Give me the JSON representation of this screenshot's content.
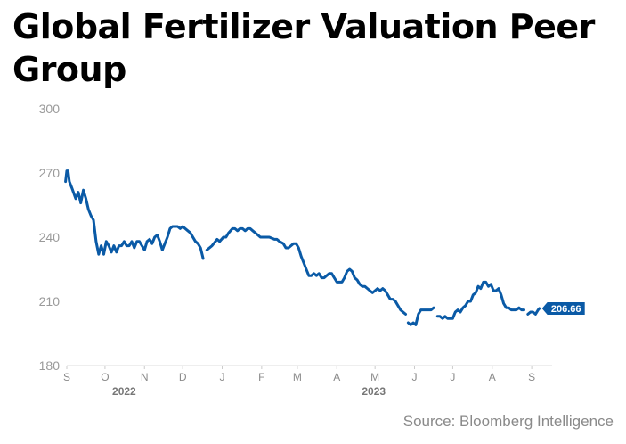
{
  "title": "Global Fertilizer Valuation Peer Group",
  "source": "Source: Bloomberg Intelligence",
  "chart_data": {
    "type": "line",
    "title": "Global Fertilizer Valuation Peer Group",
    "xlabel": "",
    "ylabel": "",
    "ylim": [
      180,
      300
    ],
    "yticks": [
      180,
      210,
      240,
      270,
      300
    ],
    "xlim": [
      "2022-09-01",
      "2023-09-17"
    ],
    "xticks": [
      {
        "label": "S",
        "date": "2022-09-01"
      },
      {
        "label": "O",
        "date": "2022-10-01"
      },
      {
        "label": "N",
        "date": "2022-11-01"
      },
      {
        "label": "D",
        "date": "2022-12-01"
      },
      {
        "label": "J",
        "date": "2023-01-01"
      },
      {
        "label": "F",
        "date": "2023-02-01"
      },
      {
        "label": "M",
        "date": "2023-03-01"
      },
      {
        "label": "A",
        "date": "2023-04-01"
      },
      {
        "label": "M",
        "date": "2023-05-01"
      },
      {
        "label": "J",
        "date": "2023-06-01"
      },
      {
        "label": "J",
        "date": "2023-07-01"
      },
      {
        "label": "A",
        "date": "2023-08-01"
      },
      {
        "label": "S",
        "date": "2023-09-01"
      }
    ],
    "year_labels": [
      {
        "label": "2022",
        "date": "2022-10-16"
      },
      {
        "label": "2023",
        "date": "2023-04-30"
      }
    ],
    "grid": false,
    "line_color": "#0a5aa6",
    "last_value_label": "206.66",
    "series": [
      {
        "points": [
          [
            "2022-08-31",
            266
          ],
          [
            "2022-09-01",
            271
          ],
          [
            "2022-09-02",
            271
          ],
          [
            "2022-09-03",
            266
          ],
          [
            "2022-09-05",
            263
          ],
          [
            "2022-09-08",
            258
          ],
          [
            "2022-09-10",
            261
          ],
          [
            "2022-09-12",
            256
          ],
          [
            "2022-09-14",
            262
          ],
          [
            "2022-09-16",
            258
          ],
          [
            "2022-09-18",
            253
          ],
          [
            "2022-09-20",
            250
          ],
          [
            "2022-09-22",
            248
          ],
          [
            "2022-09-24",
            238
          ],
          [
            "2022-09-26",
            232
          ],
          [
            "2022-09-28",
            236
          ],
          [
            "2022-09-30",
            232
          ],
          [
            "2022-10-02",
            238
          ],
          [
            "2022-10-04",
            236
          ],
          [
            "2022-10-06",
            233
          ],
          [
            "2022-10-08",
            236
          ],
          [
            "2022-10-10",
            233
          ],
          [
            "2022-10-12",
            236
          ],
          [
            "2022-10-14",
            236
          ],
          [
            "2022-10-16",
            238
          ],
          [
            "2022-10-18",
            236
          ],
          [
            "2022-10-20",
            236
          ],
          [
            "2022-10-22",
            238
          ],
          [
            "2022-10-24",
            235
          ],
          [
            "2022-10-26",
            238
          ],
          [
            "2022-10-28",
            238
          ],
          [
            "2022-10-30",
            236
          ],
          [
            "2022-11-01",
            234
          ],
          [
            "2022-11-03",
            238
          ],
          [
            "2022-11-05",
            239
          ],
          [
            "2022-11-07",
            237
          ],
          [
            "2022-11-09",
            240
          ],
          [
            "2022-11-11",
            241
          ],
          [
            "2022-11-13",
            238
          ],
          [
            "2022-11-15",
            234
          ],
          [
            "2022-11-17",
            237
          ],
          [
            "2022-11-19",
            240
          ],
          [
            "2022-11-21",
            244
          ],
          [
            "2022-11-23",
            245
          ],
          [
            "2022-11-25",
            245
          ],
          [
            "2022-11-27",
            245
          ],
          [
            "2022-11-29",
            244
          ],
          [
            "2022-12-01",
            245
          ],
          [
            "2022-12-03",
            244
          ],
          [
            "2022-12-05",
            243
          ],
          [
            "2022-12-07",
            242
          ],
          [
            "2022-12-09",
            240
          ],
          [
            "2022-12-11",
            238
          ],
          [
            "2022-12-13",
            237
          ],
          [
            "2022-12-15",
            235
          ],
          [
            "2022-12-17",
            230
          ],
          null,
          [
            "2022-12-20",
            234
          ],
          [
            "2022-12-24",
            236
          ],
          [
            "2022-12-28",
            239
          ],
          [
            "2022-12-30",
            238
          ],
          [
            "2023-01-02",
            240
          ],
          [
            "2023-01-04",
            240
          ],
          [
            "2023-01-06",
            242
          ],
          [
            "2023-01-09",
            244
          ],
          [
            "2023-01-11",
            244
          ],
          [
            "2023-01-13",
            243
          ],
          [
            "2023-01-15",
            244
          ],
          [
            "2023-01-17",
            244
          ],
          [
            "2023-01-19",
            243
          ],
          [
            "2023-01-21",
            244
          ],
          [
            "2023-01-23",
            244
          ],
          [
            "2023-01-25",
            243
          ],
          [
            "2023-01-27",
            242
          ],
          [
            "2023-01-29",
            241
          ],
          [
            "2023-01-31",
            240
          ],
          [
            "2023-02-03",
            240
          ],
          [
            "2023-02-07",
            240
          ],
          [
            "2023-02-11",
            239
          ],
          [
            "2023-02-13",
            239
          ],
          [
            "2023-02-15",
            238
          ],
          [
            "2023-02-18",
            237
          ],
          [
            "2023-02-20",
            235
          ],
          [
            "2023-02-22",
            235
          ],
          [
            "2023-02-24",
            236
          ],
          [
            "2023-02-26",
            237
          ],
          [
            "2023-02-28",
            237
          ],
          [
            "2023-03-02",
            235
          ],
          [
            "2023-03-04",
            231
          ],
          [
            "2023-03-06",
            228
          ],
          [
            "2023-03-08",
            225
          ],
          [
            "2023-03-10",
            222
          ],
          [
            "2023-03-12",
            222
          ],
          [
            "2023-03-14",
            223
          ],
          [
            "2023-03-16",
            222
          ],
          [
            "2023-03-18",
            223
          ],
          [
            "2023-03-20",
            221
          ],
          [
            "2023-03-22",
            221
          ],
          [
            "2023-03-24",
            222
          ],
          [
            "2023-03-26",
            223
          ],
          [
            "2023-03-28",
            223
          ],
          [
            "2023-03-30",
            221
          ],
          [
            "2023-04-01",
            219
          ],
          [
            "2023-04-03",
            219
          ],
          [
            "2023-04-05",
            219
          ],
          [
            "2023-04-07",
            221
          ],
          [
            "2023-04-09",
            224
          ],
          [
            "2023-04-11",
            225
          ],
          [
            "2023-04-13",
            224
          ],
          [
            "2023-04-15",
            221
          ],
          [
            "2023-04-17",
            220
          ],
          [
            "2023-04-19",
            218
          ],
          [
            "2023-04-21",
            217
          ],
          [
            "2023-04-23",
            217
          ],
          [
            "2023-04-25",
            216
          ],
          [
            "2023-04-27",
            215
          ],
          [
            "2023-04-29",
            214
          ],
          [
            "2023-05-01",
            215
          ],
          [
            "2023-05-03",
            216
          ],
          [
            "2023-05-05",
            215
          ],
          [
            "2023-05-07",
            216
          ],
          [
            "2023-05-09",
            215
          ],
          [
            "2023-05-11",
            213
          ],
          [
            "2023-05-13",
            211
          ],
          [
            "2023-05-15",
            211
          ],
          [
            "2023-05-17",
            210
          ],
          [
            "2023-05-19",
            208
          ],
          [
            "2023-05-21",
            206
          ],
          [
            "2023-05-23",
            205
          ],
          [
            "2023-05-25",
            204
          ],
          null,
          [
            "2023-05-27",
            200
          ],
          [
            "2023-05-29",
            199
          ],
          [
            "2023-05-31",
            200
          ],
          [
            "2023-06-02",
            199
          ],
          [
            "2023-06-04",
            204
          ],
          [
            "2023-06-06",
            206
          ],
          [
            "2023-06-08",
            206
          ],
          [
            "2023-06-10",
            206
          ],
          [
            "2023-06-12",
            206
          ],
          [
            "2023-06-14",
            206
          ],
          [
            "2023-06-16",
            207
          ],
          null,
          [
            "2023-06-19",
            203
          ],
          [
            "2023-06-21",
            203
          ],
          [
            "2023-06-23",
            202
          ],
          [
            "2023-06-25",
            203
          ],
          [
            "2023-06-27",
            202
          ],
          [
            "2023-06-29",
            202
          ],
          [
            "2023-07-01",
            202
          ],
          [
            "2023-07-03",
            205
          ],
          [
            "2023-07-05",
            206
          ],
          [
            "2023-07-07",
            205
          ],
          [
            "2023-07-09",
            207
          ],
          [
            "2023-07-11",
            208
          ],
          [
            "2023-07-13",
            210
          ],
          [
            "2023-07-15",
            210
          ],
          [
            "2023-07-17",
            213
          ],
          [
            "2023-07-19",
            214
          ],
          [
            "2023-07-21",
            217
          ],
          [
            "2023-07-23",
            216
          ],
          [
            "2023-07-25",
            219
          ],
          [
            "2023-07-27",
            219
          ],
          [
            "2023-07-29",
            217
          ],
          [
            "2023-07-31",
            218
          ],
          [
            "2023-08-02",
            215
          ],
          [
            "2023-08-04",
            215
          ],
          [
            "2023-08-06",
            216
          ],
          [
            "2023-08-08",
            213
          ],
          [
            "2023-08-10",
            209
          ],
          [
            "2023-08-12",
            207
          ],
          [
            "2023-08-14",
            207
          ],
          [
            "2023-08-16",
            206
          ],
          [
            "2023-08-18",
            206
          ],
          [
            "2023-08-20",
            206
          ],
          [
            "2023-08-22",
            207
          ],
          [
            "2023-08-24",
            206
          ],
          [
            "2023-08-26",
            206
          ],
          null,
          [
            "2023-08-29",
            204
          ],
          [
            "2023-08-31",
            205
          ],
          [
            "2023-09-02",
            205
          ],
          [
            "2023-09-04",
            204
          ],
          [
            "2023-09-06",
            206
          ],
          [
            "2023-09-07",
            206.66
          ]
        ]
      }
    ]
  }
}
